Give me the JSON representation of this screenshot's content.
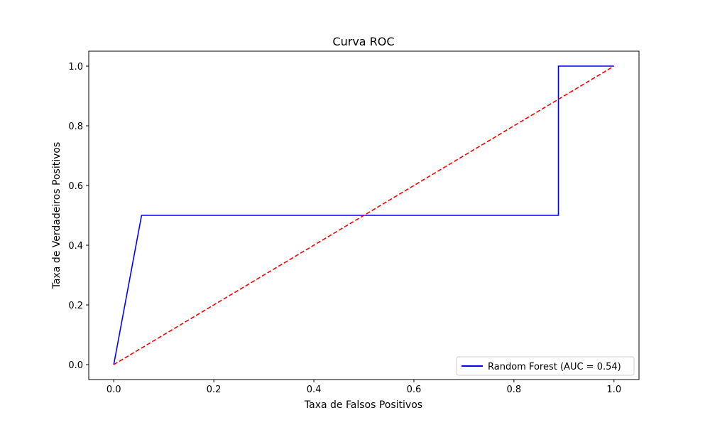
{
  "chart_data": {
    "type": "line",
    "title": "Curva ROC",
    "xlabel": "Taxa de Falsos Positivos",
    "ylabel": "Taxa de Verdadeiros Positivos",
    "xlim": [
      -0.05,
      1.05
    ],
    "ylim": [
      -0.05,
      1.05
    ],
    "xticks": [
      "0.0",
      "0.2",
      "0.4",
      "0.6",
      "0.8",
      "1.0"
    ],
    "yticks": [
      "0.0",
      "0.2",
      "0.4",
      "0.6",
      "0.8",
      "1.0"
    ],
    "grid": false,
    "legend_position": "lower-right",
    "series": [
      {
        "name": "Random Forest (AUC = 0.54)",
        "color": "#0000ff",
        "style": "solid",
        "x": [
          0.0,
          0.0556,
          0.8889,
          0.8889,
          1.0
        ],
        "y": [
          0.0,
          0.5,
          0.5,
          1.0,
          1.0
        ]
      },
      {
        "color": "#ff0000",
        "style": "dashed",
        "x": [
          0.0,
          1.0
        ],
        "y": [
          0.0,
          1.0
        ]
      }
    ]
  }
}
